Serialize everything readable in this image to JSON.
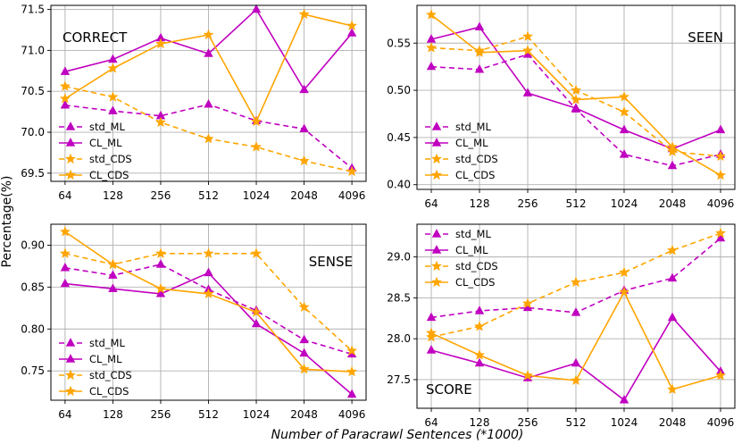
{
  "chart_data": {
    "type": "line",
    "xlabel": "Number of Paracrawl Sentences (*1000)",
    "ylabel": "Percentage(%)",
    "categories": [
      "64",
      "128",
      "256",
      "512",
      "1024",
      "2048",
      "4096"
    ],
    "legend": {
      "std_ml": "std_ML",
      "cl_ml": "CL_ML",
      "std_cds": "std_CDS",
      "cl_cds": "CL_CDS"
    },
    "colors": {
      "ml": "#c000c0",
      "cds": "#ffa500"
    },
    "panels": [
      {
        "title": "CORRECT",
        "ylim": [
          69.4,
          71.55
        ],
        "yticks": [
          "69.5",
          "70.0",
          "70.5",
          "71.0",
          "71.5"
        ],
        "legend_position": "lower-left",
        "series": [
          {
            "name": "std_ML",
            "values": [
              70.33,
              70.26,
              70.2,
              70.34,
              70.14,
              70.04,
              69.56
            ]
          },
          {
            "name": "CL_ML",
            "values": [
              70.74,
              70.89,
              71.15,
              70.96,
              71.5,
              70.52,
              71.21
            ]
          },
          {
            "name": "std_CDS",
            "values": [
              70.56,
              70.43,
              70.12,
              69.92,
              69.82,
              69.65,
              69.52
            ]
          },
          {
            "name": "CL_CDS",
            "values": [
              70.41,
              70.78,
              71.08,
              71.19,
              70.13,
              71.44,
              71.3
            ]
          }
        ]
      },
      {
        "title": "SEEN",
        "ylim": [
          0.395,
          0.59
        ],
        "yticks": [
          "0.40",
          "0.45",
          "0.50",
          "0.55"
        ],
        "legend_position": "lower-left",
        "series": [
          {
            "name": "std_ML",
            "values": [
              0.525,
              0.522,
              0.538,
              0.48,
              0.432,
              0.42,
              0.432
            ]
          },
          {
            "name": "CL_ML",
            "values": [
              0.554,
              0.567,
              0.497,
              0.481,
              0.458,
              0.438,
              0.458
            ]
          },
          {
            "name": "std_CDS",
            "values": [
              0.545,
              0.542,
              0.557,
              0.5,
              0.477,
              0.435,
              0.43
            ]
          },
          {
            "name": "CL_CDS",
            "values": [
              0.58,
              0.54,
              0.542,
              0.49,
              0.493,
              0.44,
              0.41
            ]
          }
        ]
      },
      {
        "title": "SENSE",
        "ylim": [
          0.715,
          0.925
        ],
        "yticks": [
          "0.75",
          "0.80",
          "0.85",
          "0.90"
        ],
        "legend_position": "lower-left",
        "series": [
          {
            "name": "std_ML",
            "values": [
              0.873,
              0.864,
              0.877,
              0.847,
              0.822,
              0.787,
              0.77
            ]
          },
          {
            "name": "CL_ML",
            "values": [
              0.854,
              0.848,
              0.842,
              0.867,
              0.806,
              0.771,
              0.722
            ]
          },
          {
            "name": "std_CDS",
            "values": [
              0.89,
              0.877,
              0.89,
              0.89,
              0.89,
              0.826,
              0.774
            ]
          },
          {
            "name": "CL_CDS",
            "values": [
              0.916,
              0.877,
              0.848,
              0.842,
              0.82,
              0.752,
              0.749
            ]
          }
        ]
      },
      {
        "title": "SCORE",
        "ylim": [
          27.15,
          29.4
        ],
        "yticks": [
          "27.5",
          "28.0",
          "28.5",
          "29.0"
        ],
        "legend_position": "upper-left",
        "series": [
          {
            "name": "std_ML",
            "values": [
              28.26,
              28.34,
              28.38,
              28.32,
              28.59,
              28.74,
              29.23
            ]
          },
          {
            "name": "CL_ML",
            "values": [
              27.86,
              27.7,
              27.52,
              27.7,
              27.25,
              28.26,
              27.6
            ]
          },
          {
            "name": "std_CDS",
            "values": [
              28.02,
              28.15,
              28.43,
              28.69,
              28.81,
              29.08,
              29.29
            ]
          },
          {
            "name": "CL_CDS",
            "values": [
              28.07,
              27.8,
              27.55,
              27.49,
              28.57,
              27.38,
              27.55
            ]
          }
        ]
      }
    ]
  }
}
